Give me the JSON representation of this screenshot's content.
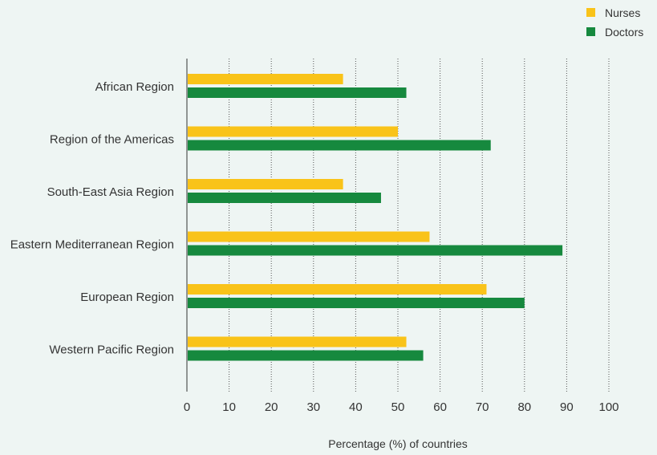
{
  "chart_data": {
    "type": "bar",
    "orientation": "horizontal",
    "categories": [
      "African Region",
      "Region of the Americas",
      "South-East Asia Region",
      "Eastern Mediterranean Region",
      "European Region",
      "Western Pacific Region"
    ],
    "series": [
      {
        "name": "Nurses",
        "color": "#f9c319",
        "values": [
          37,
          50,
          37,
          57.5,
          71,
          52
        ]
      },
      {
        "name": "Doctors",
        "color": "#16893e",
        "values": [
          52,
          72,
          46,
          89,
          80,
          56
        ]
      }
    ],
    "xlabel": "Percentage (%) of countries",
    "xlim": [
      0,
      100
    ],
    "xticks": [
      0,
      10,
      20,
      30,
      40,
      50,
      60,
      70,
      80,
      90,
      100
    ],
    "grid": "vertical dotted",
    "legend_position": "top-right"
  }
}
